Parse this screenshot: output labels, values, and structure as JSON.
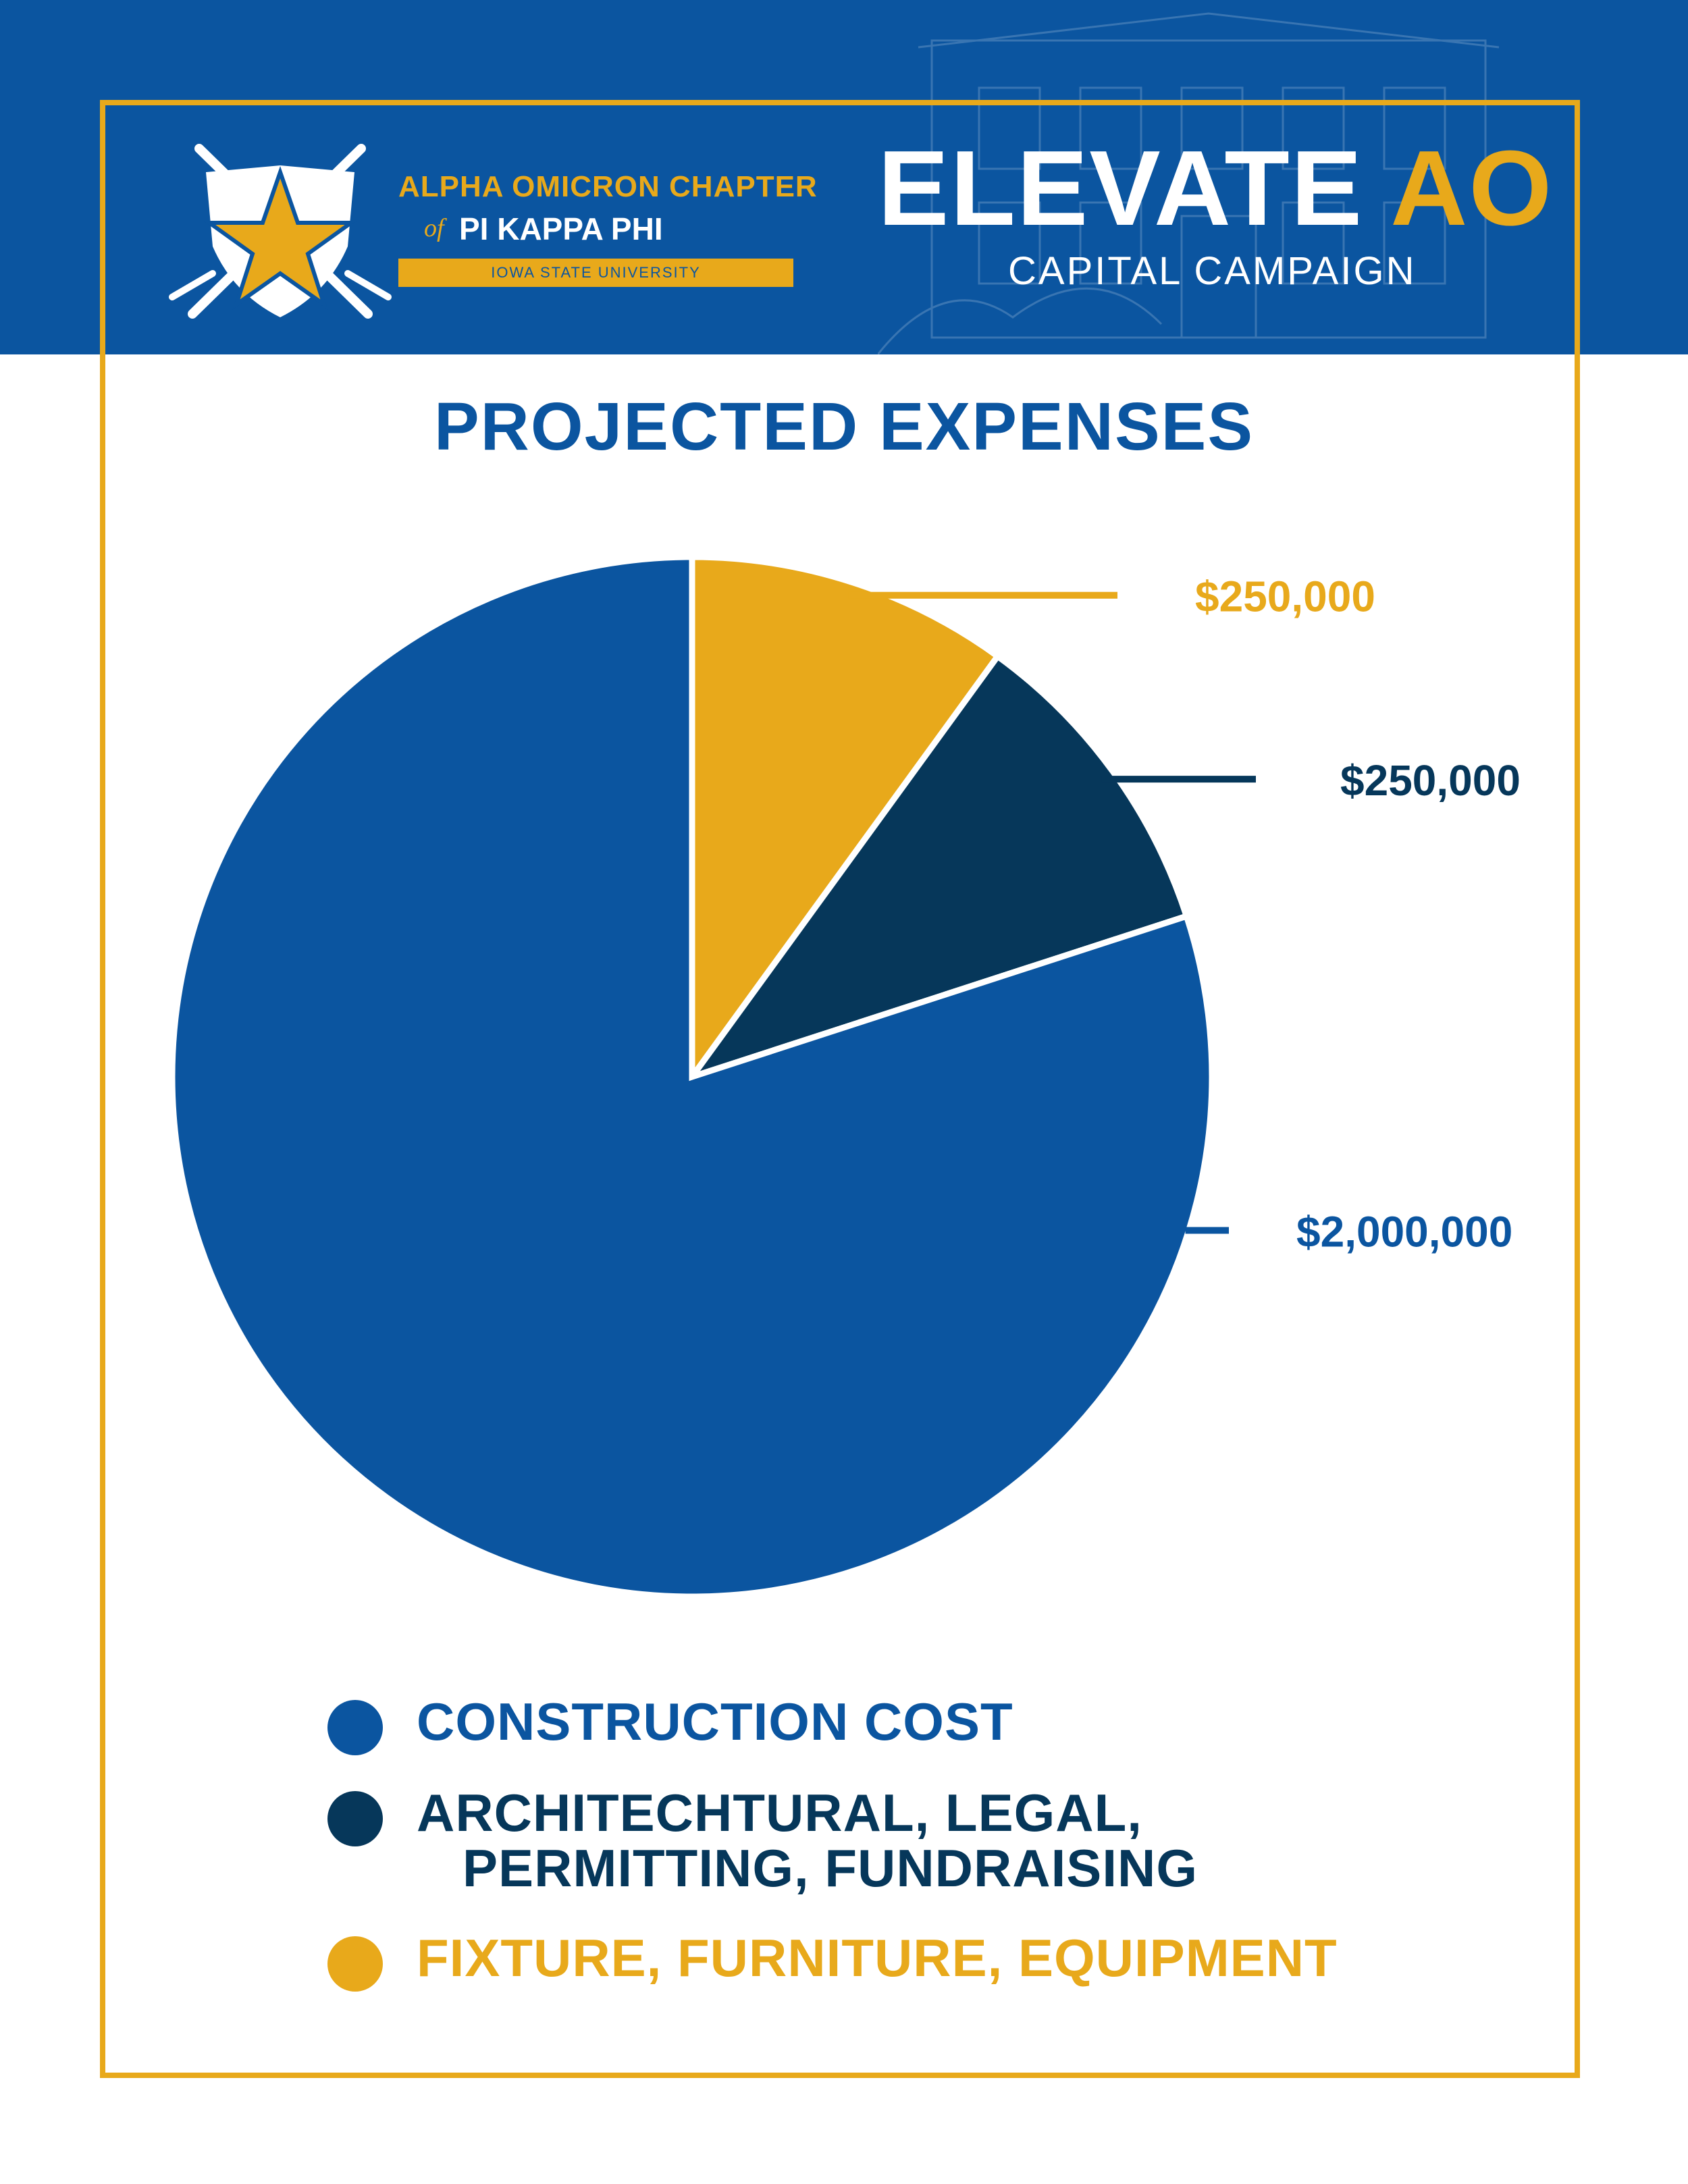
{
  "header": {
    "org_line1": "ALPHA OMICRON CHAPTER",
    "org_of": "of",
    "org_line2": "PI KAPPA PHI",
    "university": "IOWA STATE UNIVERSITY",
    "campaign_title": "ELEVATE",
    "campaign_title_accent": "AO",
    "campaign_subtitle": "CAPITAL CAMPAIGN"
  },
  "colors": {
    "brand_blue": "#0b55a0",
    "navy": "#06375a",
    "gold": "#e8a91b",
    "white": "#ffffff"
  },
  "chart_data": {
    "type": "pie",
    "title": "PROJECTED EXPENSES",
    "series": [
      {
        "name": "FIXTURE, FURNITURE, EQUIPMENT",
        "value": 250000,
        "label": "$250,000",
        "color": "#e8a91b"
      },
      {
        "name": "ARCHITECHTURAL, LEGAL,\n   PERMITTING, FUNDRAISING",
        "value": 250000,
        "label": "$250,000",
        "color": "#06375a"
      },
      {
        "name": "CONSTRUCTION COST",
        "value": 2000000,
        "label": "$2,000,000",
        "color": "#0b55a0"
      }
    ],
    "legend": [
      {
        "label": "CONSTRUCTION COST",
        "color": "#0b55a0"
      },
      {
        "label": "ARCHITECHTURAL, LEGAL,\n   PERMITTING, FUNDRAISING",
        "color": "#06375a"
      },
      {
        "label": "FIXTURE, FURNITURE, EQUIPMENT",
        "color": "#e8a91b"
      }
    ]
  }
}
